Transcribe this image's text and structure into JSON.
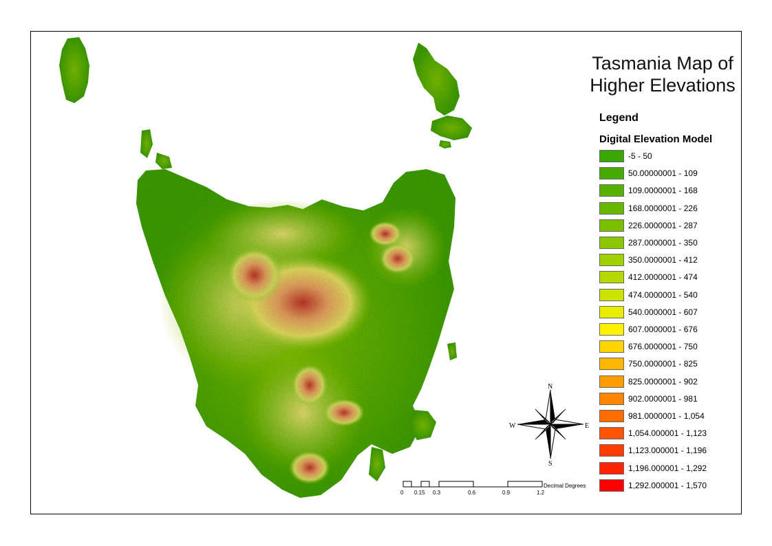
{
  "map": {
    "title_line1": "Tasmania Map of",
    "title_line2": "Higher Elevations",
    "legend_heading": "Legend",
    "legend_layer": "Digital Elevation Model",
    "legend_items": [
      {
        "label": "-5 - 50",
        "color": "#38a800"
      },
      {
        "label": "50.00000001 - 109",
        "color": "#45ab00"
      },
      {
        "label": "109.0000001 - 168",
        "color": "#55b200"
      },
      {
        "label": "168.0000001 - 226",
        "color": "#66b800"
      },
      {
        "label": "226.0000001 - 287",
        "color": "#78bf00"
      },
      {
        "label": "287.0000001 - 350",
        "color": "#8bc700"
      },
      {
        "label": "350.0000001 - 412",
        "color": "#a0d100"
      },
      {
        "label": "412.0000001 - 474",
        "color": "#b5da00"
      },
      {
        "label": "474.0000001 - 540",
        "color": "#cce300"
      },
      {
        "label": "540.0000001 - 607",
        "color": "#e8ee00"
      },
      {
        "label": "607.0000001 - 676",
        "color": "#fff200"
      },
      {
        "label": "676.0000001 - 750",
        "color": "#ffd400"
      },
      {
        "label": "750.0000001 - 825",
        "color": "#ffb700"
      },
      {
        "label": "825.0000001 - 902",
        "color": "#ff9d00"
      },
      {
        "label": "902.0000001 - 981",
        "color": "#ff8500"
      },
      {
        "label": "981.0000001 - 1,054",
        "color": "#ff6d00"
      },
      {
        "label": "1,054.000001 - 1,123",
        "color": "#ff5500"
      },
      {
        "label": "1,123.000001 - 1,196",
        "color": "#ff3d00"
      },
      {
        "label": "1,196.000001 - 1,292",
        "color": "#ff2500"
      },
      {
        "label": "1,292.000001 - 1,570",
        "color": "#ff0000"
      }
    ],
    "scale_bar": {
      "ticks": [
        "0",
        "0.15",
        "0.3",
        "0.6",
        "0.9",
        "1.2"
      ],
      "units": "Decimal Degrees"
    },
    "compass": {
      "n": "N",
      "s": "S",
      "e": "E",
      "w": "W"
    }
  }
}
